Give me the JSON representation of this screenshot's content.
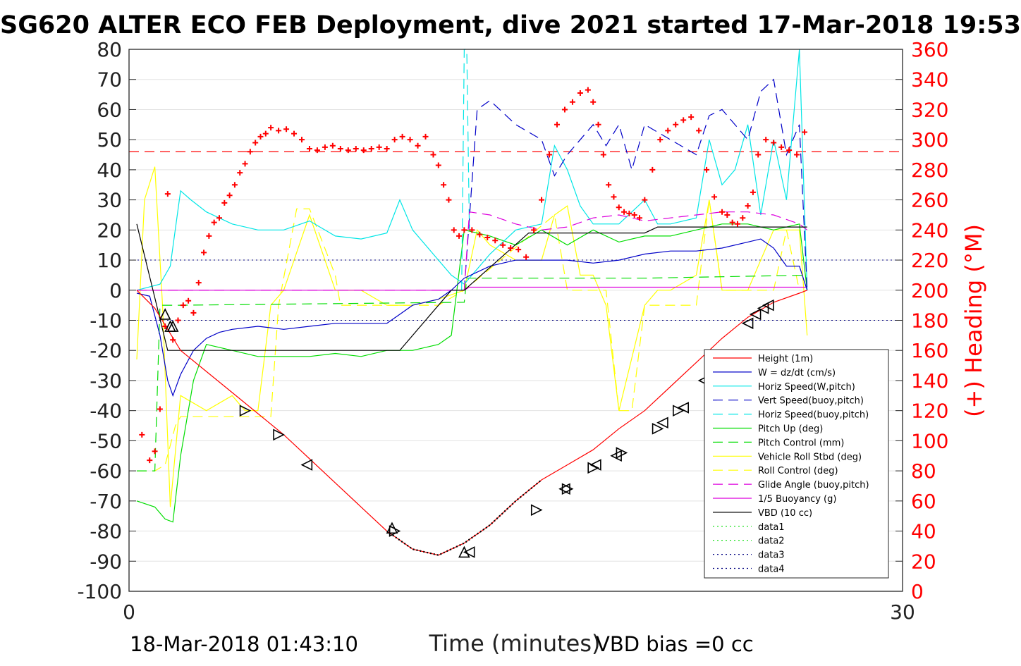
{
  "title": "SG620 ALTER ECO FEB Deployment, dive 2021 started 17-Mar-2018 19:53",
  "footer": {
    "date": "18-Mar-2018 01:43:10",
    "bias": "VBD bias =0 cc"
  },
  "colors": {
    "height": "#ff0000",
    "w": "#0000c8",
    "horiz_w": "#00e6e6",
    "vert_buoy": "#0000c8",
    "horiz_buoy": "#00e6e6",
    "pitch_up": "#00dd00",
    "pitch_ctrl": "#00dd00",
    "roll": "#ffff00",
    "roll_ctrl": "#ffff00",
    "glide": "#dd00dd",
    "buoy": "#dd00dd",
    "vbd": "#000000",
    "heading": "#ff0000",
    "data_green": "#00dd00",
    "data_blue": "#000080"
  },
  "chart_data": {
    "type": "line",
    "title": "SG620 ALTER ECO FEB Deployment, dive 2021 started 17-Mar-2018 19:53",
    "xlabel": "Time (minutes)",
    "ylabel": "",
    "y2label": "(+) Heading (°M)",
    "xlim": [
      0,
      30
    ],
    "ylim": [
      -100,
      80
    ],
    "y2lim": [
      0,
      360
    ],
    "xticks": [
      "0",
      "30"
    ],
    "yticks": [
      "80",
      "70",
      "60",
      "50",
      "40",
      "30",
      "20",
      "10",
      "0",
      "-10",
      "-20",
      "-30",
      "-40",
      "-50",
      "-60",
      "-70",
      "-80",
      "-90",
      "-100"
    ],
    "y2ticks": [
      "360",
      "340",
      "320",
      "300",
      "280",
      "260",
      "240",
      "220",
      "200",
      "180",
      "160",
      "140",
      "120",
      "100",
      "80",
      "60",
      "40",
      "20",
      "0"
    ],
    "grid": "horizontal",
    "legend_position": "lower-right",
    "legend": [
      "Height (1m)",
      "W = dz/dt (cm/s)",
      "Horiz Speed(W,pitch)",
      "Vert Speed(buoy,pitch)",
      "Horiz Speed(buoy,pitch)",
      "Pitch Up (deg)",
      "Pitch Control (mm)",
      "Vehicle Roll Stbd (deg)",
      "Roll Control (deg)",
      "Glide Angle (buoy,pitch)",
      "1/5 Buoyancy (g)",
      "VBD (10 cc)",
      "data1",
      "data2",
      "data3",
      "data4"
    ],
    "reference_lines": {
      "heading_target": 292,
      "data_dotted_y": [
        10,
        -10
      ]
    },
    "series": [
      {
        "name": "Height (1m)",
        "key": "height",
        "dash": "",
        "x": [
          0.3,
          1.0,
          2.0,
          3.0,
          4.0,
          5.0,
          6.0,
          7.0,
          8.0,
          9.0,
          10.0,
          11.0,
          12.0,
          13.0,
          14.0,
          15.0,
          16.0,
          17.0,
          18.0,
          19.0,
          20.0,
          21.0,
          22.0,
          23.0,
          24.0,
          25.0,
          26.0,
          26.3
        ],
        "y": [
          0,
          -6,
          -20,
          -27,
          -34,
          -41,
          -48,
          -56,
          -64,
          -72,
          -80,
          -86,
          -88,
          -84,
          -78,
          -70,
          -63,
          -58,
          -53,
          -46,
          -40,
          -32,
          -24,
          -16,
          -9,
          -4,
          -1,
          0
        ]
      },
      {
        "name": "W = dz/dt (cm/s)",
        "key": "w",
        "dash": "",
        "x": [
          0.3,
          0.8,
          1.2,
          1.5,
          1.7,
          2.0,
          2.5,
          3.0,
          3.5,
          4.0,
          5.0,
          6.0,
          7.0,
          8.0,
          9.0,
          10.0,
          10.5,
          11.0,
          12.0,
          12.5,
          13.0,
          14.0,
          15.0,
          16.0,
          17.0,
          18.0,
          19.0,
          20.0,
          21.0,
          22.0,
          23.0,
          24.0,
          24.5,
          25.0,
          25.5,
          26.0,
          26.3
        ],
        "y": [
          -1,
          -2,
          -15,
          -30,
          -35,
          -28,
          -20,
          -16,
          -14,
          -13,
          -12,
          -13,
          -12,
          -11,
          -11,
          -11,
          -8,
          -5,
          -3,
          0,
          4,
          8,
          10,
          10,
          10,
          9,
          10,
          12,
          13,
          13,
          14,
          16,
          17,
          14,
          8,
          8,
          0
        ]
      },
      {
        "name": "Horiz Speed(W,pitch)",
        "key": "horiz_w",
        "dash": "",
        "x": [
          0.3,
          1.2,
          1.6,
          2.0,
          2.4,
          3.0,
          4.0,
          5.0,
          6.0,
          7.0,
          8.0,
          9.0,
          10.0,
          10.5,
          11.0,
          12.0,
          12.5,
          13.0,
          14.0,
          15.0,
          16.0,
          16.5,
          17.0,
          17.5,
          18.0,
          19.0,
          20.0,
          20.5,
          21.0,
          22.0,
          22.5,
          23.0,
          23.5,
          24.0,
          24.5,
          25.0,
          25.5,
          26.0,
          26.3
        ],
        "y": [
          0,
          2,
          8,
          33,
          30,
          26,
          22,
          20,
          20,
          23,
          18,
          17,
          19,
          30,
          20,
          10,
          5,
          2,
          12,
          20,
          22,
          48,
          40,
          28,
          22,
          22,
          30,
          22,
          22,
          24,
          50,
          35,
          40,
          55,
          25,
          50,
          30,
          80,
          0
        ]
      },
      {
        "name": "Vert Speed(buoy,pitch)",
        "key": "vert_buoy",
        "dash": "14,8",
        "x": [
          13.0,
          13.5,
          14.0,
          15.0,
          16.0,
          16.5,
          17.0,
          17.5,
          18.0,
          18.5,
          19.0,
          19.5,
          20.0,
          21.0,
          22.0,
          22.5,
          23.0,
          24.0,
          24.5,
          25.0,
          25.5,
          26.0,
          26.3
        ],
        "y": [
          0,
          60,
          63,
          55,
          50,
          38,
          45,
          50,
          55,
          48,
          55,
          40,
          55,
          50,
          45,
          58,
          60,
          50,
          66,
          70,
          45,
          55,
          0
        ]
      },
      {
        "name": "Horiz Speed(buoy,pitch)",
        "key": "horiz_buoy",
        "dash": "14,8",
        "x": [
          12.9,
          13.0,
          13.1,
          13.2
        ],
        "y": [
          0,
          80,
          80,
          20
        ]
      },
      {
        "name": "Pitch Up (deg)",
        "key": "pitch_up",
        "dash": "",
        "x": [
          0.3,
          1.0,
          1.4,
          1.7,
          2.0,
          2.5,
          3.0,
          4.0,
          5.0,
          6.0,
          7.0,
          8.0,
          9.0,
          10.0,
          11.0,
          12.0,
          12.5,
          13.0,
          14.0,
          15.0,
          16.0,
          17.0,
          18.0,
          19.0,
          20.0,
          21.0,
          22.0,
          23.0,
          24.0,
          25.0,
          26.0,
          26.3
        ],
        "y": [
          -70,
          -72,
          -76,
          -77,
          -55,
          -30,
          -18,
          -20,
          -22,
          -22,
          -22,
          -21,
          -22,
          -20,
          -20,
          -18,
          -15,
          20,
          18,
          15,
          20,
          15,
          20,
          16,
          18,
          18,
          20,
          22,
          22,
          20,
          22,
          0
        ]
      },
      {
        "name": "Pitch Control (mm)",
        "key": "pitch_ctrl",
        "dash": "14,8",
        "x": [
          0.3,
          1.0,
          1.2,
          2.0,
          13.0,
          13.1,
          14.0,
          20.0,
          26.3
        ],
        "y": [
          -60,
          -60,
          -5,
          -5,
          -4,
          4,
          4,
          4,
          5
        ]
      },
      {
        "name": "Vehicle Roll Stbd (deg)",
        "key": "roll",
        "dash": "",
        "x": [
          0.3,
          0.6,
          1.0,
          1.3,
          1.6,
          2.0,
          3.0,
          4.0,
          4.5,
          5.0,
          5.5,
          6.0,
          7.0,
          8.0,
          9.0,
          10.0,
          11.0,
          12.0,
          13.0,
          13.5,
          14.0,
          15.0,
          16.0,
          16.5,
          17.0,
          17.5,
          18.0,
          18.5,
          19.0,
          20.0,
          20.5,
          21.0,
          22.0,
          22.5,
          23.0,
          24.0,
          25.0,
          26.0,
          26.3
        ],
        "y": [
          -23,
          30,
          41,
          -5,
          -72,
          -35,
          -40,
          -35,
          -40,
          -40,
          -5,
          0,
          25,
          0,
          0,
          -5,
          -5,
          -3,
          0,
          20,
          15,
          10,
          10,
          25,
          28,
          5,
          5,
          -5,
          -40,
          -5,
          0,
          0,
          5,
          30,
          0,
          0,
          20,
          20,
          -15
        ]
      },
      {
        "name": "Roll Control (deg)",
        "key": "roll_ctrl",
        "dash": "14,8",
        "x": [
          0.3,
          1.0,
          1.4,
          1.8,
          2.0,
          4.0,
          5.5,
          5.8,
          6.5,
          7.0,
          8.0,
          8.2,
          12.0,
          13.0,
          16.5,
          17.0,
          18.5,
          19.0,
          19.5,
          20.0,
          20.3,
          22.0,
          22.5,
          23.0,
          25.0,
          25.5,
          26.0
        ],
        "y": [
          -60,
          -60,
          -58,
          -45,
          -42,
          -42,
          -42,
          -5,
          27,
          27,
          5,
          -5,
          -5,
          0,
          25,
          0,
          0,
          -40,
          -40,
          -5,
          -5,
          -5,
          30,
          0,
          0,
          20,
          0
        ]
      },
      {
        "name": "Glide Angle (buoy,pitch)",
        "key": "glide",
        "dash": "14,8",
        "x": [
          0.3,
          13.0,
          13.2,
          14.0,
          15.0,
          16.0,
          17.0,
          18.0,
          19.0,
          20.0,
          21.0,
          22.0,
          23.0,
          24.0,
          25.0,
          26.0,
          26.3
        ],
        "y": [
          0,
          0,
          26,
          25,
          22,
          20,
          21,
          24,
          25,
          23,
          24,
          25,
          26,
          26,
          25,
          22,
          20
        ]
      },
      {
        "name": "1/5 Buoyancy (g)",
        "key": "buoy",
        "dash": "",
        "x": [
          0.3,
          13.0,
          13.2,
          26.3
        ],
        "y": [
          0,
          0,
          1,
          1
        ]
      },
      {
        "name": "VBD (10 cc)",
        "key": "vbd",
        "dash": "",
        "x": [
          0.3,
          1.5,
          10.5,
          12.5,
          13.0,
          15.5,
          20.0,
          20.5,
          26.3
        ],
        "y": [
          22,
          -20,
          -20,
          0,
          0,
          19,
          19,
          21,
          21
        ]
      }
    ],
    "heading_points": {
      "name": "(+) Heading (°M)",
      "x": [
        0.5,
        0.8,
        1.0,
        1.2,
        1.4,
        1.5,
        1.7,
        1.9,
        2.1,
        2.3,
        2.5,
        2.7,
        2.9,
        3.1,
        3.3,
        3.5,
        3.7,
        3.9,
        4.1,
        4.3,
        4.5,
        4.7,
        4.9,
        5.1,
        5.3,
        5.5,
        5.8,
        6.1,
        6.4,
        6.7,
        7.0,
        7.3,
        7.6,
        7.9,
        8.2,
        8.5,
        8.8,
        9.1,
        9.4,
        9.7,
        10.0,
        10.3,
        10.6,
        10.9,
        11.2,
        11.5,
        11.8,
        12.0,
        12.2,
        12.4,
        12.6,
        12.8,
        13.0,
        13.3,
        13.6,
        13.9,
        14.2,
        14.5,
        14.8,
        15.1,
        15.4,
        15.7,
        16.0,
        16.3,
        16.6,
        16.9,
        17.2,
        17.5,
        17.8,
        18.0,
        18.2,
        18.4,
        18.6,
        18.8,
        19.0,
        19.2,
        19.4,
        19.6,
        19.8,
        20.0,
        20.3,
        20.6,
        20.9,
        21.2,
        21.5,
        21.8,
        22.1,
        22.4,
        22.7,
        23.0,
        23.2,
        23.4,
        23.6,
        23.8,
        24.0,
        24.2,
        24.4,
        24.7,
        25.0,
        25.3,
        25.6,
        25.9,
        26.2
      ],
      "y": [
        104,
        87,
        93,
        121,
        176,
        264,
        167,
        180,
        190,
        193,
        185,
        205,
        225,
        236,
        245,
        248,
        258,
        263,
        270,
        278,
        284,
        292,
        298,
        302,
        304,
        308,
        306,
        307,
        304,
        300,
        294,
        293,
        295,
        296,
        294,
        293,
        294,
        293,
        294,
        295,
        294,
        300,
        302,
        300,
        296,
        302,
        290,
        283,
        270,
        260,
        240,
        236,
        240,
        240,
        237,
        235,
        233,
        230,
        228,
        227,
        222,
        240,
        260,
        290,
        310,
        320,
        325,
        331,
        333,
        325,
        310,
        290,
        270,
        262,
        255,
        252,
        251,
        250,
        248,
        260,
        280,
        300,
        306,
        310,
        313,
        315,
        306,
        280,
        262,
        252,
        250,
        245,
        244,
        248,
        256,
        265,
        290,
        300,
        298,
        295,
        293,
        290,
        305
      ]
    },
    "markers": [
      {
        "x": 1.4,
        "y": -8,
        "dir": "up"
      },
      {
        "x": 1.6,
        "y": -12,
        "dir": "up"
      },
      {
        "x": 1.7,
        "y": -12,
        "dir": "up"
      },
      {
        "x": 4.5,
        "y": -40,
        "dir": "right"
      },
      {
        "x": 5.8,
        "y": -48,
        "dir": "right"
      },
      {
        "x": 6.9,
        "y": -58,
        "dir": "left"
      },
      {
        "x": 10.2,
        "y": -79,
        "dir": "up"
      },
      {
        "x": 10.3,
        "y": -80,
        "dir": "right"
      },
      {
        "x": 13.0,
        "y": -87,
        "dir": "up"
      },
      {
        "x": 13.2,
        "y": -87,
        "dir": "left"
      },
      {
        "x": 15.8,
        "y": -73,
        "dir": "right"
      },
      {
        "x": 16.9,
        "y": -66,
        "dir": "left"
      },
      {
        "x": 17.0,
        "y": -66,
        "dir": "right"
      },
      {
        "x": 18.0,
        "y": -59,
        "dir": "right"
      },
      {
        "x": 18.1,
        "y": -58,
        "dir": "left"
      },
      {
        "x": 18.9,
        "y": -55,
        "dir": "left"
      },
      {
        "x": 19.1,
        "y": -54,
        "dir": "right"
      },
      {
        "x": 20.5,
        "y": -46,
        "dir": "right"
      },
      {
        "x": 20.7,
        "y": -44,
        "dir": "left"
      },
      {
        "x": 21.3,
        "y": -40,
        "dir": "right"
      },
      {
        "x": 21.5,
        "y": -39,
        "dir": "left"
      },
      {
        "x": 22.3,
        "y": -30,
        "dir": "left"
      },
      {
        "x": 24.0,
        "y": -11,
        "dir": "left"
      },
      {
        "x": 24.3,
        "y": -8,
        "dir": "left"
      },
      {
        "x": 24.6,
        "y": -6,
        "dir": "left"
      },
      {
        "x": 24.8,
        "y": -5,
        "dir": "left"
      }
    ]
  }
}
